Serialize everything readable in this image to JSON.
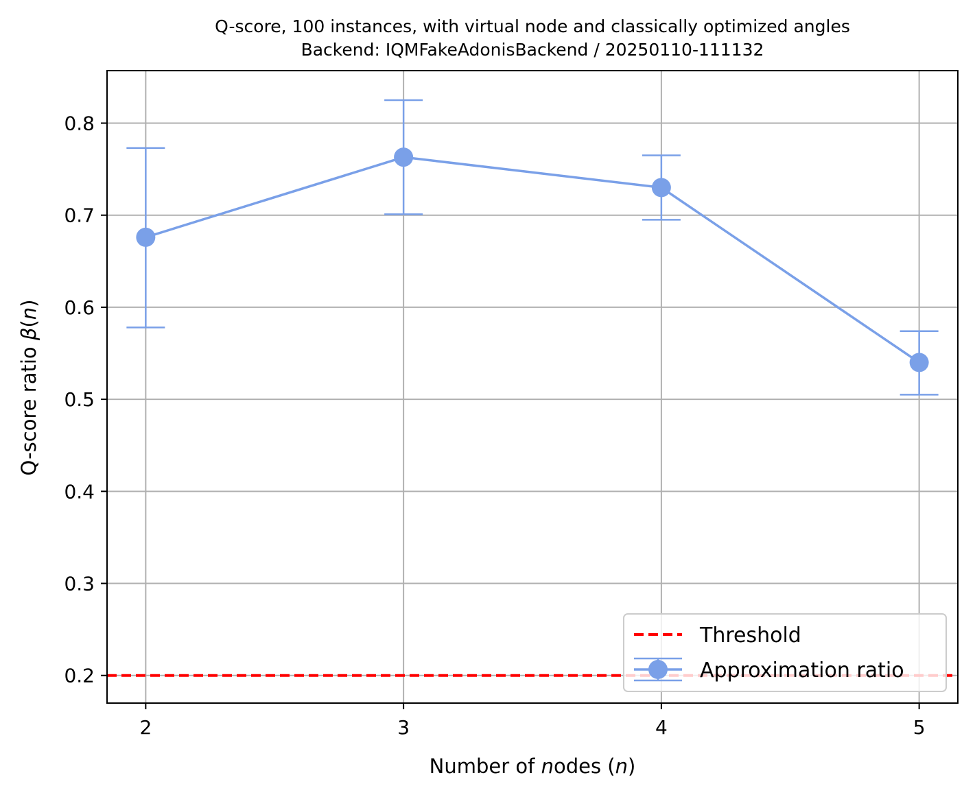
{
  "chart_data": {
    "type": "line",
    "title": "Q-score, 100 instances, with virtual node and classically optimized angles",
    "subtitle": "Backend: IQMFakeAdonisBackend / 20250110-111132",
    "xlabel": "Number of nodes (n)",
    "ylabel": "Q-score ratio β(n)",
    "x": [
      2,
      3,
      4,
      5
    ],
    "x_ticks": [
      "2",
      "3",
      "4",
      "5"
    ],
    "y_ticks": [
      "0.2",
      "0.3",
      "0.4",
      "0.5",
      "0.6",
      "0.7",
      "0.8"
    ],
    "xlim": [
      1.85,
      5.15
    ],
    "ylim": [
      0.17,
      0.857
    ],
    "grid": true,
    "legend_position": "lower-right",
    "series": [
      {
        "name": "Approximation ratio",
        "color": "#7aa0e8",
        "values": [
          0.676,
          0.763,
          0.73,
          0.54
        ],
        "error_low": [
          0.578,
          0.701,
          0.695,
          0.505
        ],
        "error_high": [
          0.773,
          0.825,
          0.765,
          0.574
        ]
      }
    ],
    "threshold": {
      "name": "Threshold",
      "value": 0.2,
      "color": "#ff0000",
      "style": "dashed"
    }
  }
}
